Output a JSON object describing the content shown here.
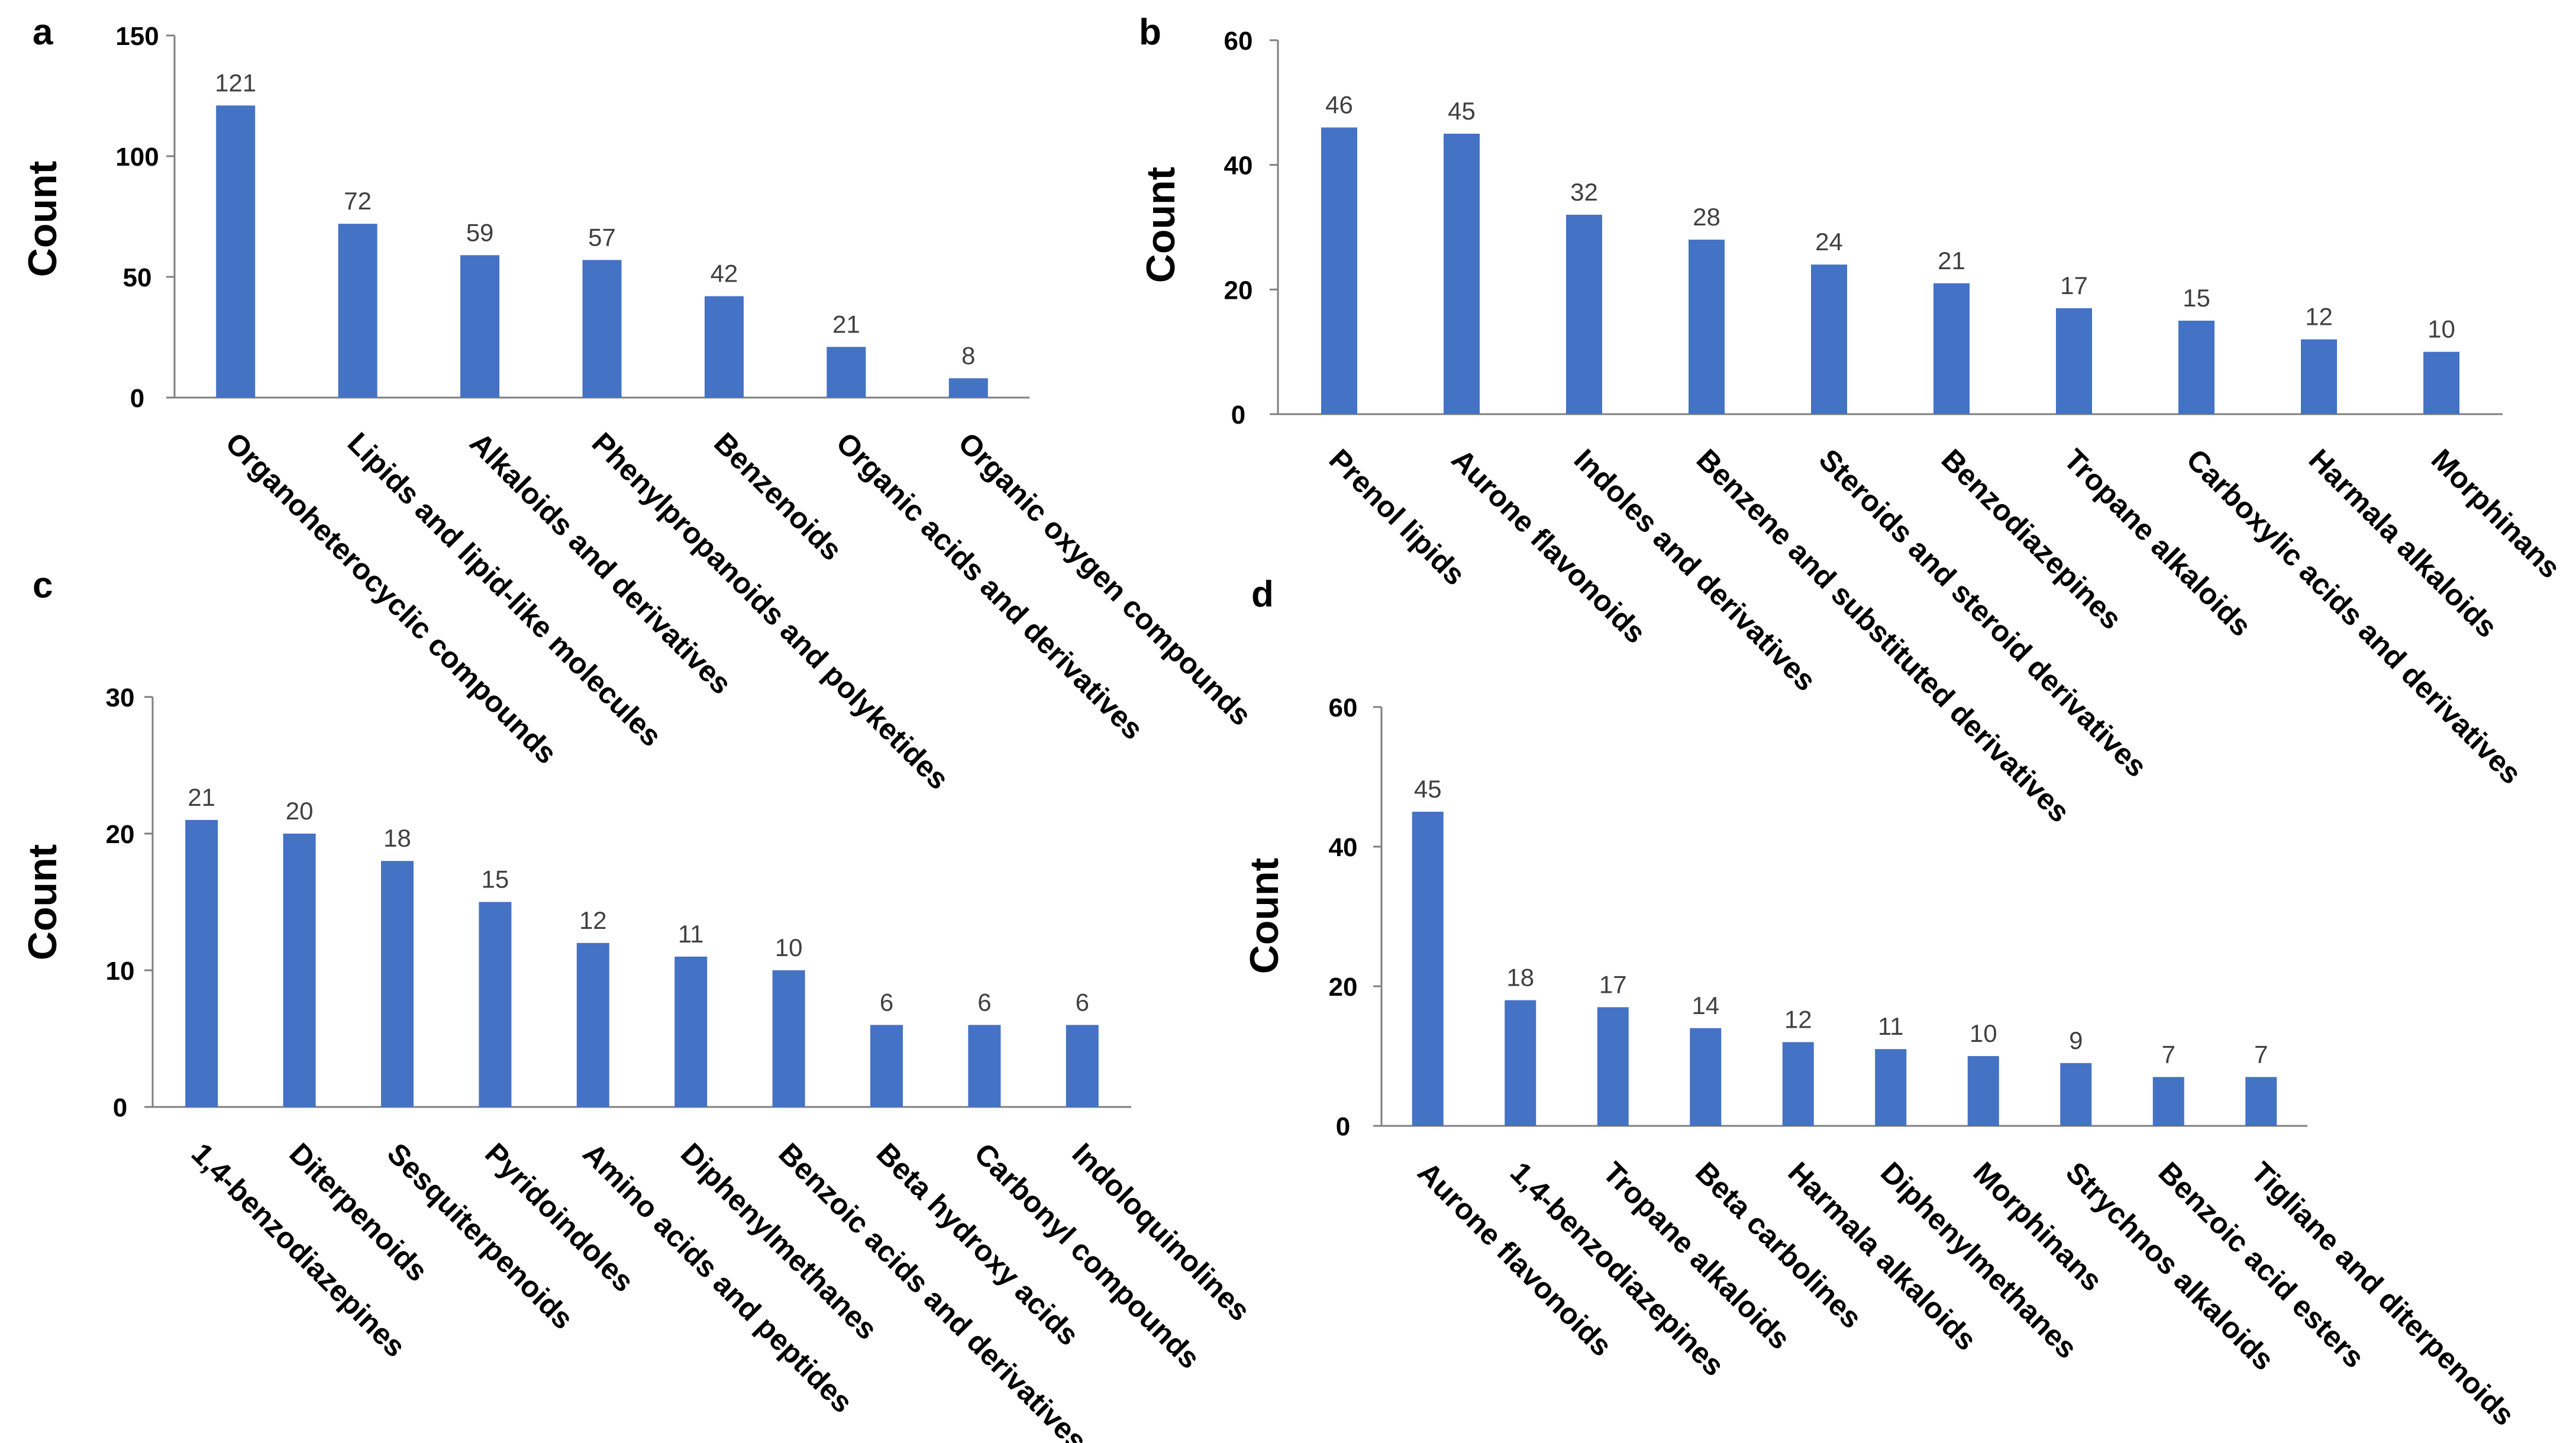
{
  "colors": {
    "bar": "#4472C4",
    "axis": "#7f7f7f",
    "text": "#000000",
    "data_label": "#404040"
  },
  "chart_data": [
    {
      "panel": "a",
      "type": "bar",
      "ylabel": "Count",
      "ylim": [
        0,
        150
      ],
      "yticks": [
        0,
        50,
        100,
        150
      ],
      "categories": [
        "Organoheterocyclic compounds",
        "Lipids and lipid-like molecules",
        "Alkaloids and derivatives",
        "Phenylpropanoids and polyketides",
        "Benzenoids",
        "Organic acids and derivatives",
        "Organic oxygen compounds"
      ],
      "values": [
        121,
        72,
        59,
        57,
        42,
        21,
        8
      ]
    },
    {
      "panel": "b",
      "type": "bar",
      "ylabel": "Count",
      "ylim": [
        0,
        60
      ],
      "yticks": [
        0,
        20,
        40,
        60
      ],
      "categories": [
        "Prenol lipids",
        "Aurone flavonoids",
        "Indoles and derivatives",
        "Benzene and substituted derivatives",
        "Steroids and steroid derivatives",
        "Benzodiazepines",
        "Tropane alkaloids",
        "Carboxylic acids and derivatives",
        "Harmala alkaloids",
        "Morphinans"
      ],
      "values": [
        46,
        45,
        32,
        28,
        24,
        21,
        17,
        15,
        12,
        10
      ]
    },
    {
      "panel": "c",
      "type": "bar",
      "ylabel": "Count",
      "ylim": [
        0,
        30
      ],
      "yticks": [
        0,
        10,
        20,
        30
      ],
      "categories": [
        "1,4-benzodiazepines",
        "Diterpenoids",
        "Sesquiterpenoids",
        "Pyridoindoles",
        "Amino acids and peptides",
        "Diphenylmethanes",
        "Benzoic acids and derivatives",
        "Beta hydroxy acids",
        "Carbonyl compounds",
        "Indoloquinolines"
      ],
      "values": [
        21,
        20,
        18,
        15,
        12,
        11,
        10,
        6,
        6,
        6
      ]
    },
    {
      "panel": "d",
      "type": "bar",
      "ylabel": "Count",
      "ylim": [
        0,
        60
      ],
      "yticks": [
        0,
        20,
        40,
        60
      ],
      "categories": [
        "Aurone flavonoids",
        "1,4-benzodiazepines",
        "Tropane alkaloids",
        "Beta carbolines",
        "Harmala alkaloids",
        "Diphenylmethanes",
        "Morphinans",
        "Strychnos alkaloids",
        "Benzoic acid esters",
        "Tigliane and diterpenoids"
      ],
      "values": [
        45,
        18,
        17,
        14,
        12,
        11,
        10,
        9,
        7,
        7
      ]
    }
  ]
}
